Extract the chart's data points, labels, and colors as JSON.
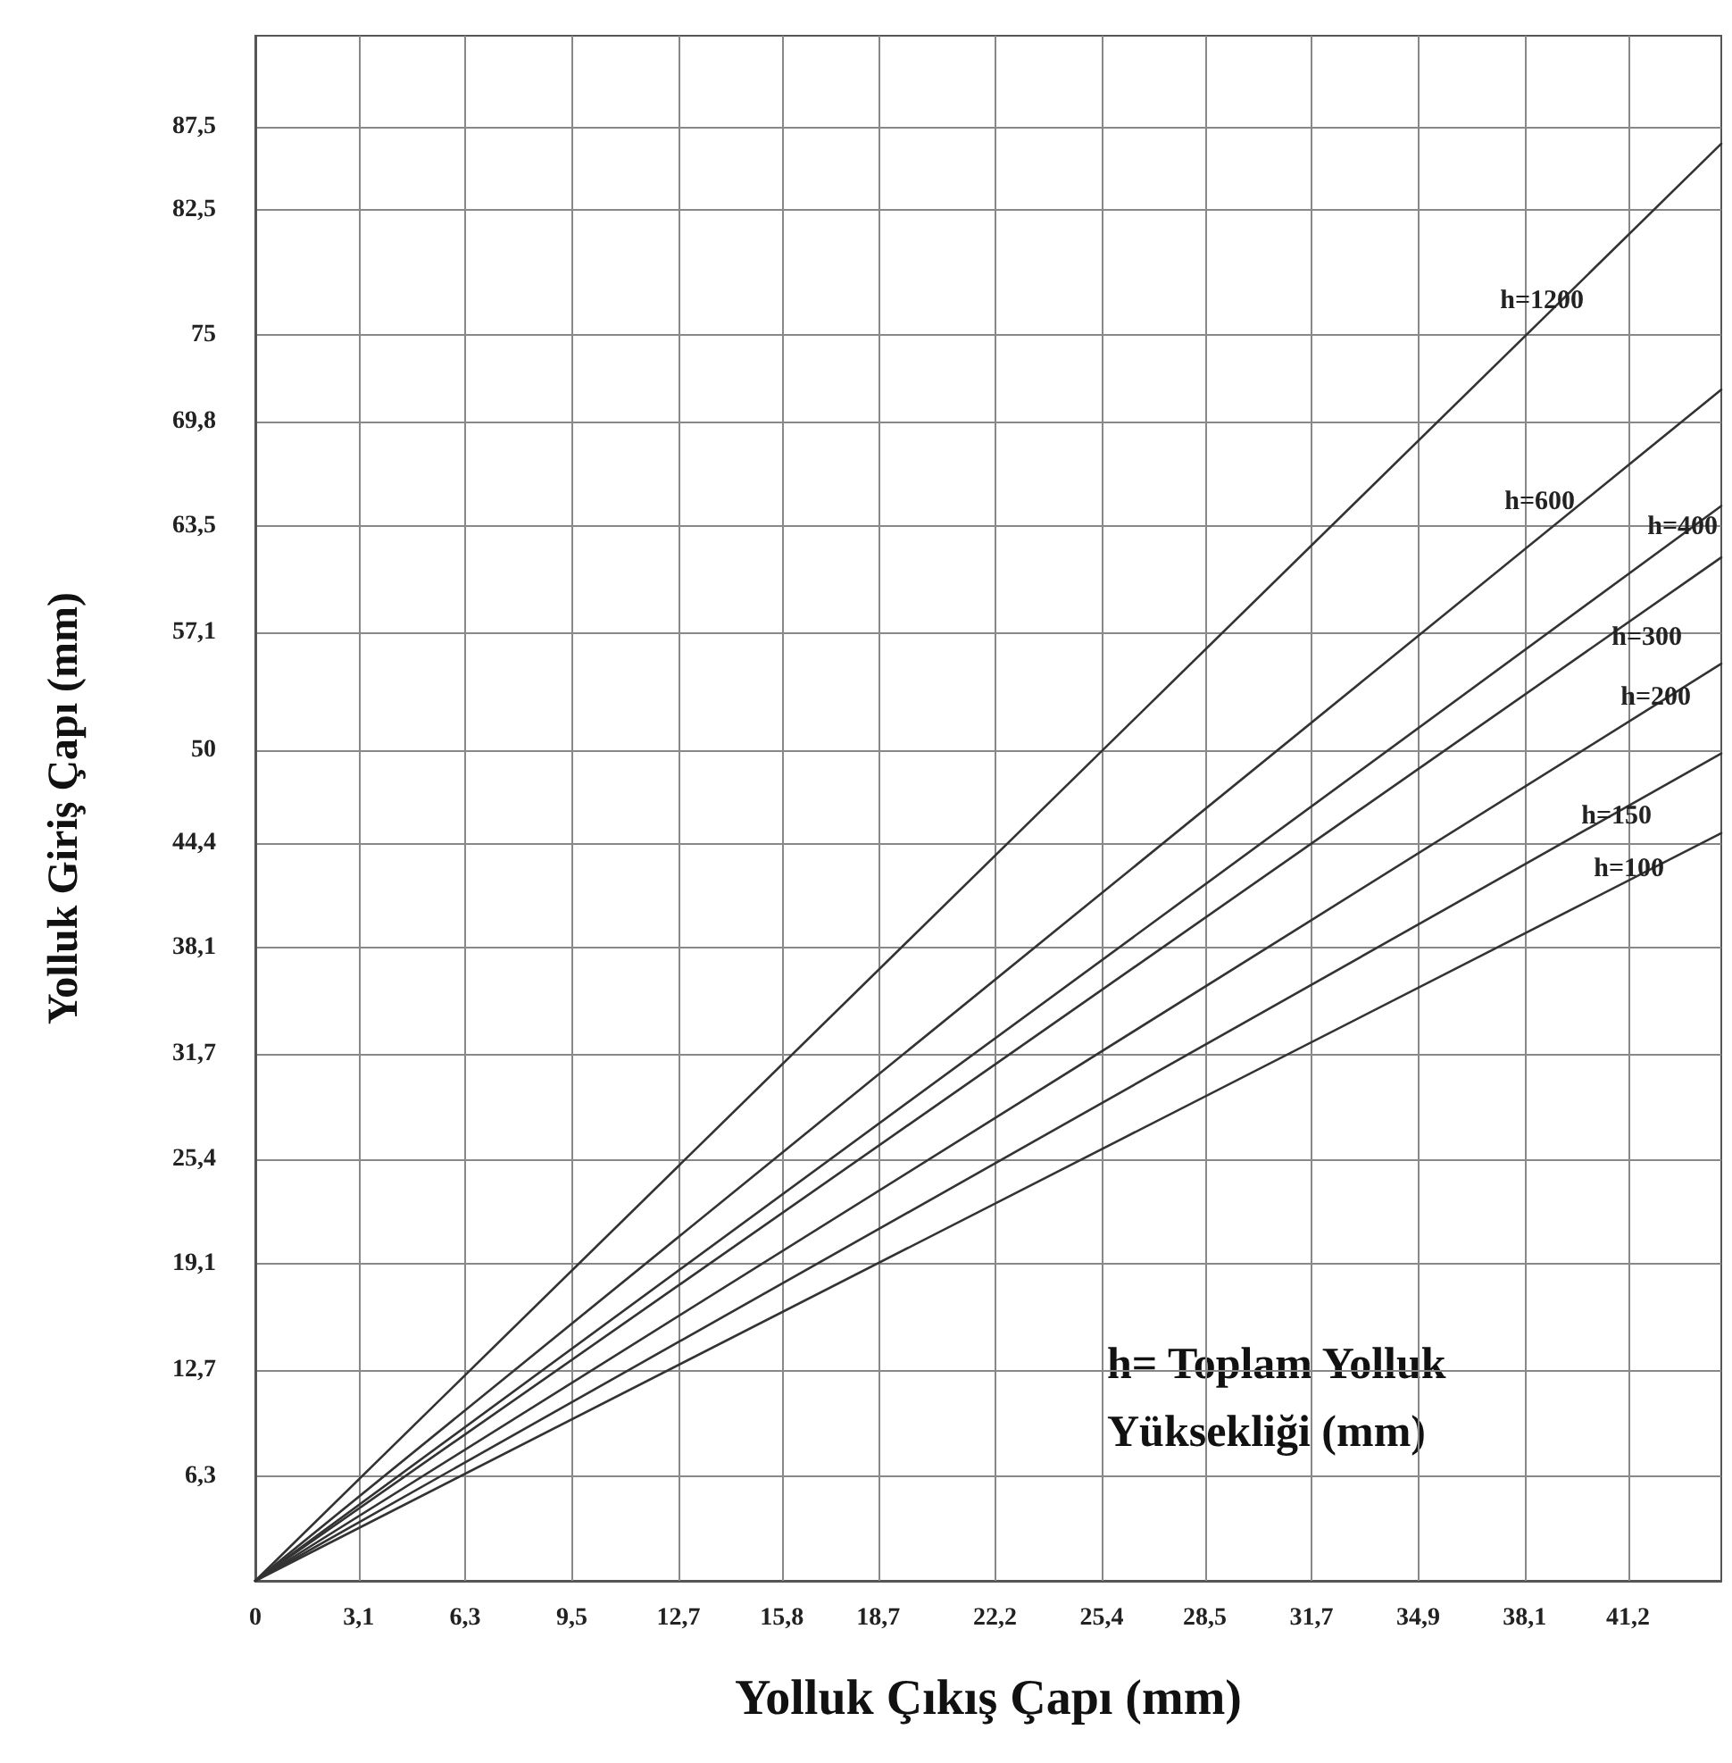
{
  "chart_data": {
    "type": "line",
    "xlabel": "Yolluk Çıkış Çapı (mm)",
    "ylabel": "Yolluk Giriş Çapı (mm)",
    "annotations": [
      "h= Toplam Yolluk Yüksekliği (mm)"
    ],
    "x": [
      0,
      44
    ],
    "series": [
      {
        "name": "h=1200",
        "color": "#333333",
        "values": [
          0,
          86.5
        ]
      },
      {
        "name": "h=600",
        "color": "#333333",
        "values": [
          0,
          71.7
        ]
      },
      {
        "name": "h=400",
        "color": "#333333",
        "values": [
          0,
          64.7
        ]
      },
      {
        "name": "h=300",
        "color": "#333333",
        "values": [
          0,
          61.6
        ]
      },
      {
        "name": "h=200",
        "color": "#333333",
        "values": [
          0,
          55.2
        ]
      },
      {
        "name": "h=150",
        "color": "#333333",
        "values": [
          0,
          49.8
        ]
      },
      {
        "name": "h=100",
        "color": "#333333",
        "values": [
          0,
          45.0
        ]
      }
    ],
    "xlim": [
      0,
      44
    ],
    "xticks": [
      0,
      {
        "value": 3.1,
        "label": "3,1"
      },
      {
        "value": 6.3,
        "label": "6,3"
      },
      {
        "value": 9.5,
        "label": "9,5"
      },
      {
        "value": 12.7,
        "label": "12,7"
      },
      {
        "value": 15.8,
        "label": "15,8"
      },
      {
        "value": 18.7,
        "label": "18,7"
      },
      {
        "value": 22.2,
        "label": "22,2"
      },
      {
        "value": 25.4,
        "label": "25,4"
      },
      {
        "value": 28.5,
        "label": "28,5"
      },
      {
        "value": 31.7,
        "label": "31,7"
      },
      {
        "value": 34.9,
        "label": "34,9"
      },
      {
        "value": 38.1,
        "label": "38,1"
      },
      {
        "value": 41.2,
        "label": "41,2"
      }
    ],
    "ylim": [
      0,
      93
    ],
    "yticks": [
      {
        "value": 6.3,
        "label": "6,3"
      },
      {
        "value": 12.7,
        "label": "12,7"
      },
      {
        "value": 19.1,
        "label": "19,1"
      },
      {
        "value": 25.4,
        "label": "25,4"
      },
      {
        "value": 31.7,
        "label": "31,7"
      },
      {
        "value": 38.1,
        "label": "38,1"
      },
      {
        "value": 44.4,
        "label": "44,4"
      },
      50,
      {
        "value": 57.1,
        "label": "57,1"
      },
      {
        "value": 63.5,
        "label": "63,5"
      },
      {
        "value": 69.8,
        "label": "69,8"
      },
      75,
      {
        "value": 82.5,
        "label": "82,5"
      },
      {
        "value": 87.5,
        "label": "87,5"
      }
    ],
    "grid": true,
    "legend": false,
    "marker": "none",
    "line_style": "solid"
  }
}
